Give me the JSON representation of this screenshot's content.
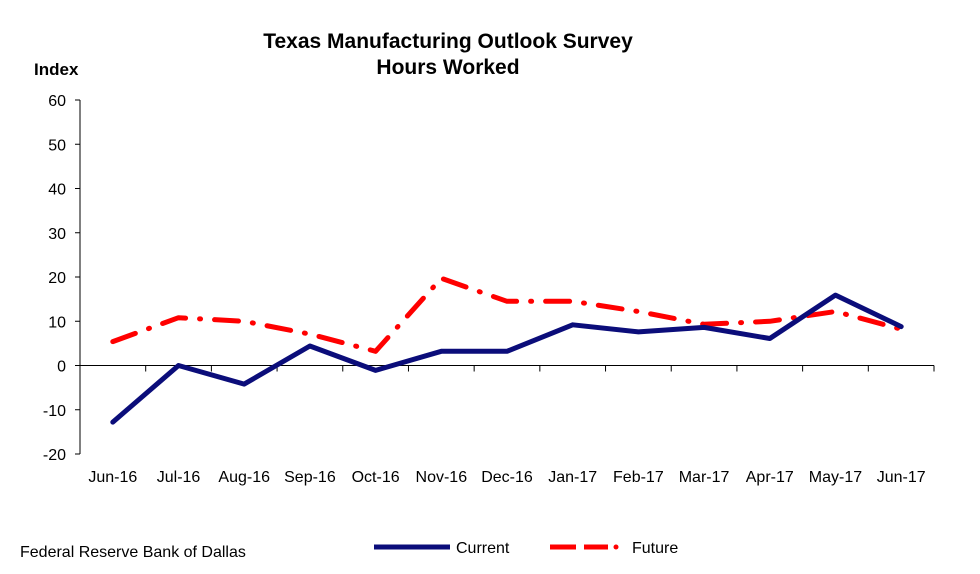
{
  "chart_data": {
    "type": "line",
    "title": "Texas Manufacturing Outlook Survey",
    "subtitle": "Hours Worked",
    "ylabel": "Index",
    "xlabel": "",
    "ylim": [
      -20,
      60
    ],
    "yticks": [
      "60",
      "50",
      "40",
      "30",
      "20",
      "10",
      "0",
      "-10",
      "-20"
    ],
    "categories": [
      "Jun-16",
      "Jul-16",
      "Aug-16",
      "Sep-16",
      "Oct-16",
      "Nov-16",
      "Dec-16",
      "Jan-17",
      "Feb-17",
      "Mar-17",
      "Apr-17",
      "May-17",
      "Jun-17"
    ],
    "series": [
      {
        "name": "Current",
        "color": "#0b0d7a",
        "style": "solid",
        "values": [
          -12.8,
          0,
          -4.2,
          4.4,
          -1.1,
          3.2,
          3.2,
          9.2,
          7.6,
          8.6,
          6.1,
          15.9,
          8.8
        ]
      },
      {
        "name": "Future",
        "color": "#ff0000",
        "style": "dash-dot",
        "values": [
          5.4,
          10.8,
          10.0,
          7.1,
          3.2,
          19.7,
          14.5,
          14.5,
          12.2,
          9.3,
          10.0,
          12.2,
          8.2
        ]
      }
    ],
    "grid": false,
    "legend_position": "bottom"
  },
  "source_note": "Federal Reserve Bank of Dallas"
}
